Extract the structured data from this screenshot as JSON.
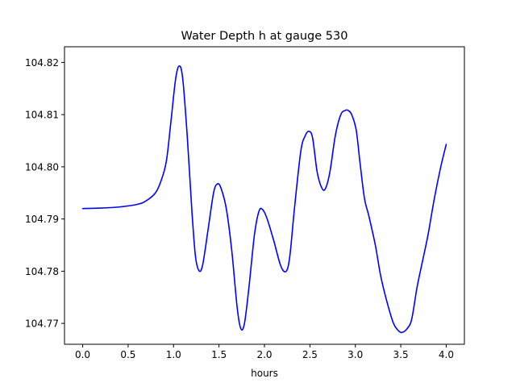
{
  "chart_data": {
    "type": "line",
    "title": "Water Depth h at gauge 530",
    "xlabel": "hours",
    "ylabel": "",
    "xlim": [
      -0.2,
      4.2
    ],
    "ylim": [
      104.766,
      104.823
    ],
    "grid": false,
    "legend": "none",
    "x_ticks": [
      0.0,
      0.5,
      1.0,
      1.5,
      2.0,
      2.5,
      3.0,
      3.5,
      4.0
    ],
    "x_tick_labels": [
      "0.0",
      "0.5",
      "1.0",
      "1.5",
      "2.0",
      "2.5",
      "3.0",
      "3.5",
      "4.0"
    ],
    "y_ticks": [
      104.77,
      104.78,
      104.79,
      104.8,
      104.81,
      104.82
    ],
    "y_tick_labels": [
      "104.77",
      "104.78",
      "104.79",
      "104.80",
      "104.81",
      "104.82"
    ],
    "series": [
      {
        "color": "#0000ff",
        "x": [
          0.0,
          0.2,
          0.4,
          0.6,
          0.7,
          0.8,
          0.86,
          0.92,
          0.97,
          1.02,
          1.06,
          1.1,
          1.15,
          1.2,
          1.24,
          1.28,
          1.32,
          1.38,
          1.44,
          1.48,
          1.52,
          1.58,
          1.64,
          1.7,
          1.74,
          1.78,
          1.83,
          1.89,
          1.94,
          1.98,
          2.03,
          2.1,
          2.18,
          2.24,
          2.28,
          2.33,
          2.4,
          2.45,
          2.49,
          2.53,
          2.58,
          2.63,
          2.67,
          2.72,
          2.78,
          2.84,
          2.89,
          2.92,
          2.96,
          3.01,
          3.05,
          3.1,
          3.15,
          3.22,
          3.28,
          3.35,
          3.42,
          3.48,
          3.52,
          3.57,
          3.62,
          3.68,
          3.74,
          3.8,
          3.87,
          3.94,
          4.0
        ],
        "y": [
          104.792,
          104.7921,
          104.7923,
          104.7928,
          104.7935,
          104.795,
          104.7972,
          104.801,
          104.8085,
          104.8165,
          104.8193,
          104.817,
          104.806,
          104.792,
          104.783,
          104.7801,
          104.7812,
          104.788,
          104.795,
          104.7967,
          104.796,
          104.792,
          104.784,
          104.773,
          104.769,
          104.77,
          104.777,
          104.787,
          104.7915,
          104.7918,
          104.79,
          104.786,
          104.781,
          104.78,
          104.783,
          104.792,
          104.803,
          104.806,
          104.8068,
          104.8055,
          104.799,
          104.796,
          104.7958,
          104.799,
          104.806,
          104.81,
          104.8108,
          104.8108,
          104.81,
          104.807,
          104.801,
          104.794,
          104.7905,
          104.785,
          104.779,
          104.774,
          104.77,
          104.7685,
          104.7683,
          104.769,
          104.7708,
          104.777,
          104.782,
          104.787,
          104.794,
          104.8,
          104.8043
        ]
      }
    ]
  }
}
